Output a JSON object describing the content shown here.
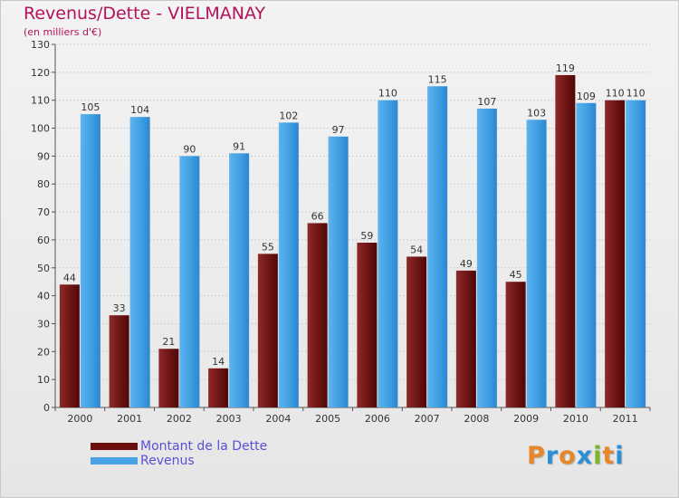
{
  "header": {
    "title": "Revenus/Dette - VIELMANAY",
    "subtitle": "(en milliers d'€)"
  },
  "chart_data": {
    "type": "bar",
    "title": "Revenus/Dette - VIELMANAY",
    "subtitle": "(en milliers d'€)",
    "categories": [
      "2000",
      "2001",
      "2002",
      "2003",
      "2004",
      "2005",
      "2006",
      "2007",
      "2008",
      "2009",
      "2010",
      "2011"
    ],
    "series": [
      {
        "name": "Montant de la Dette",
        "color": "#7a1b1b",
        "values": [
          44,
          33,
          21,
          14,
          55,
          66,
          59,
          54,
          49,
          45,
          119,
          110
        ]
      },
      {
        "name": "Revenus",
        "color": "#3d9fe3",
        "values": [
          105,
          104,
          90,
          91,
          102,
          97,
          110,
          115,
          107,
          103,
          109,
          110
        ]
      }
    ],
    "ylim": [
      0,
      130
    ],
    "yticks": [
      0,
      10,
      20,
      30,
      40,
      50,
      60,
      70,
      80,
      90,
      100,
      110,
      120,
      130
    ],
    "grid": true,
    "legend_position": "bottom-left"
  },
  "legend": [
    {
      "label": "Montant de la Dette",
      "color": "#6b0f0f"
    },
    {
      "label": "Revenus",
      "color": "#4aa3e6"
    }
  ],
  "logo": {
    "letters": [
      "P",
      "r",
      "o",
      "x",
      "i",
      "t",
      "i"
    ],
    "colors": [
      "#e8862a",
      "#2b8fd6",
      "#e8862a",
      "#2b8fd6",
      "#79b829",
      "#e8862a",
      "#2b8fd6"
    ]
  }
}
